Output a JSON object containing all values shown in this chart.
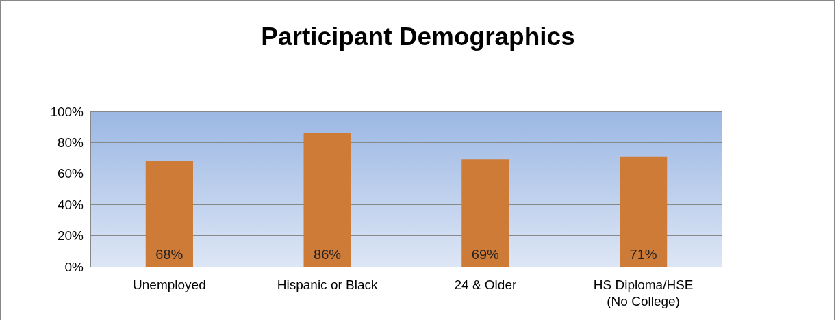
{
  "chart_data": {
    "type": "bar",
    "title": "Participant Demographics",
    "categories": [
      "Unemployed",
      "Hispanic or Black",
      "24 & Older",
      "HS Diploma/HSE\n(No College)"
    ],
    "values": [
      68,
      86,
      69,
      71
    ],
    "value_labels": [
      "68%",
      "86%",
      "69%",
      "71%"
    ],
    "color": "#cd7b37",
    "ylim": [
      0,
      100
    ],
    "yticks": [
      {
        "value": 0,
        "label": "0%"
      },
      {
        "value": 20,
        "label": "20%"
      },
      {
        "value": 40,
        "label": "40%"
      },
      {
        "value": 60,
        "label": "60%"
      },
      {
        "value": 80,
        "label": "80%"
      },
      {
        "value": 100,
        "label": "100%"
      }
    ],
    "grid": "y"
  }
}
